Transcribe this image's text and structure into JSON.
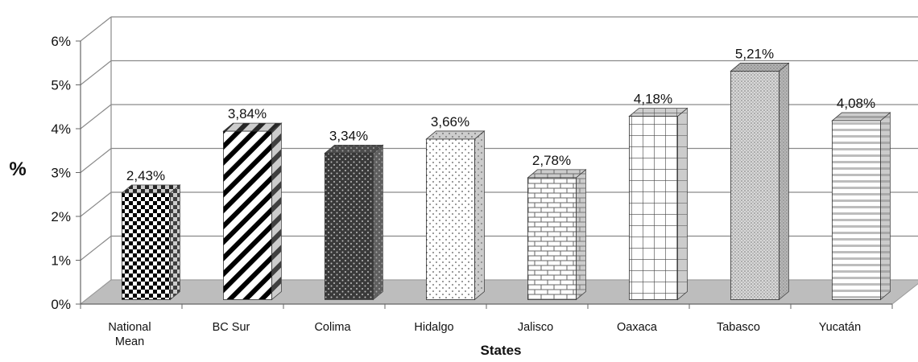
{
  "chart_data": {
    "type": "bar",
    "style": "3d-column",
    "categories": [
      [
        "National",
        "Mean"
      ],
      [
        "BC Sur"
      ],
      [
        "Colima"
      ],
      [
        "Hidalgo"
      ],
      [
        "Jalisco"
      ],
      [
        "Oaxaca"
      ],
      [
        "Tabasco"
      ],
      [
        "Yucatán"
      ]
    ],
    "values": [
      2.43,
      3.84,
      3.34,
      3.66,
      2.78,
      4.18,
      5.21,
      4.08
    ],
    "data_labels": [
      "2,43%",
      "3,84%",
      "3,34%",
      "3,66%",
      "2,78%",
      "4,18%",
      "5,21%",
      "4,08%"
    ],
    "xlabel": "States",
    "ylabel": "%",
    "ylim": [
      0,
      6
    ],
    "yticks": [
      "0%",
      "1%",
      "2%",
      "3%",
      "4%",
      "5%",
      "6%"
    ],
    "grid": true,
    "legend": "none",
    "patterns": [
      "checkerboard",
      "diagonal-stripes",
      "dark-dots",
      "light-dots",
      "brick",
      "grid",
      "fine-dots",
      "horizontal-stripes"
    ],
    "colors": {
      "floor": "#bdbdbd",
      "gridline": "#8a8a8a",
      "axis": "#666666",
      "bar_edge": "#333333"
    }
  }
}
